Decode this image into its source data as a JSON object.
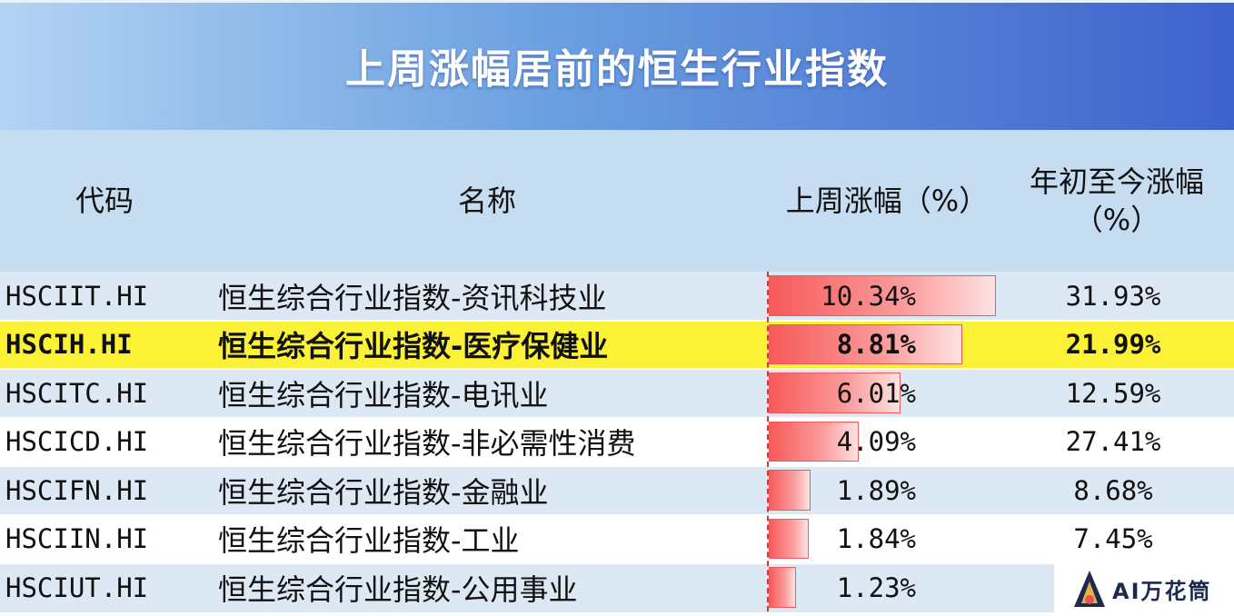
{
  "title": "上周涨幅居前的恒生行业指数",
  "columns": {
    "code": "代码",
    "name": "名称",
    "week": "上周涨幅（%）",
    "ytd_line1": "年初至今涨幅",
    "ytd_line2": "（%）"
  },
  "rows": [
    {
      "code": "HSCIIT.HI",
      "name": "恒生综合行业指数-资讯科技业",
      "week": "10.34%",
      "ytd": "31.93%",
      "highlight": false
    },
    {
      "code": "HSCIH.HI",
      "name": "恒生综合行业指数-医疗保健业",
      "week": "8.81%",
      "ytd": "21.99%",
      "highlight": true
    },
    {
      "code": "HSCITC.HI",
      "name": "恒生综合行业指数-电讯业",
      "week": "6.01%",
      "ytd": "12.59%",
      "highlight": false
    },
    {
      "code": "HSCICD.HI",
      "name": "恒生综合行业指数-非必需性消费",
      "week": "4.09%",
      "ytd": "27.41%",
      "highlight": false
    },
    {
      "code": "HSCIFN.HI",
      "name": "恒生综合行业指数-金融业",
      "week": "1.89%",
      "ytd": "8.68%",
      "highlight": false
    },
    {
      "code": "HSCIIN.HI",
      "name": "恒生综合行业指数-工业",
      "week": "1.84%",
      "ytd": "7.45%",
      "highlight": false
    },
    {
      "code": "HSCIUT.HI",
      "name": "恒生综合行业指数-公用事业",
      "week": "1.23%",
      "ytd": "",
      "highlight": false
    }
  ],
  "chart_data": {
    "type": "table",
    "title": "上周涨幅居前的恒生行业指数",
    "columns": [
      "代码",
      "名称",
      "上周涨幅（%）",
      "年初至今涨幅（%）"
    ],
    "categories": [
      "HSCIIT.HI",
      "HSCIH.HI",
      "HSCITC.HI",
      "HSCICD.HI",
      "HSCIFN.HI",
      "HSCIIN.HI",
      "HSCIUT.HI"
    ],
    "series": [
      {
        "name": "上周涨幅（%）",
        "values": [
          10.34,
          8.81,
          6.01,
          4.09,
          1.89,
          1.84,
          1.23
        ]
      },
      {
        "name": "年初至今涨幅（%）",
        "values": [
          31.93,
          21.99,
          12.59,
          27.41,
          8.68,
          7.45,
          null
        ]
      }
    ]
  },
  "watermark": {
    "text": "AI万花筒"
  },
  "colors": {
    "highlight_row": "#fbf136",
    "row_even": "#dce8f4",
    "row_odd": "#ffffff",
    "header_bg": "#c6dcf0",
    "bar_red": "#f75a5a"
  }
}
